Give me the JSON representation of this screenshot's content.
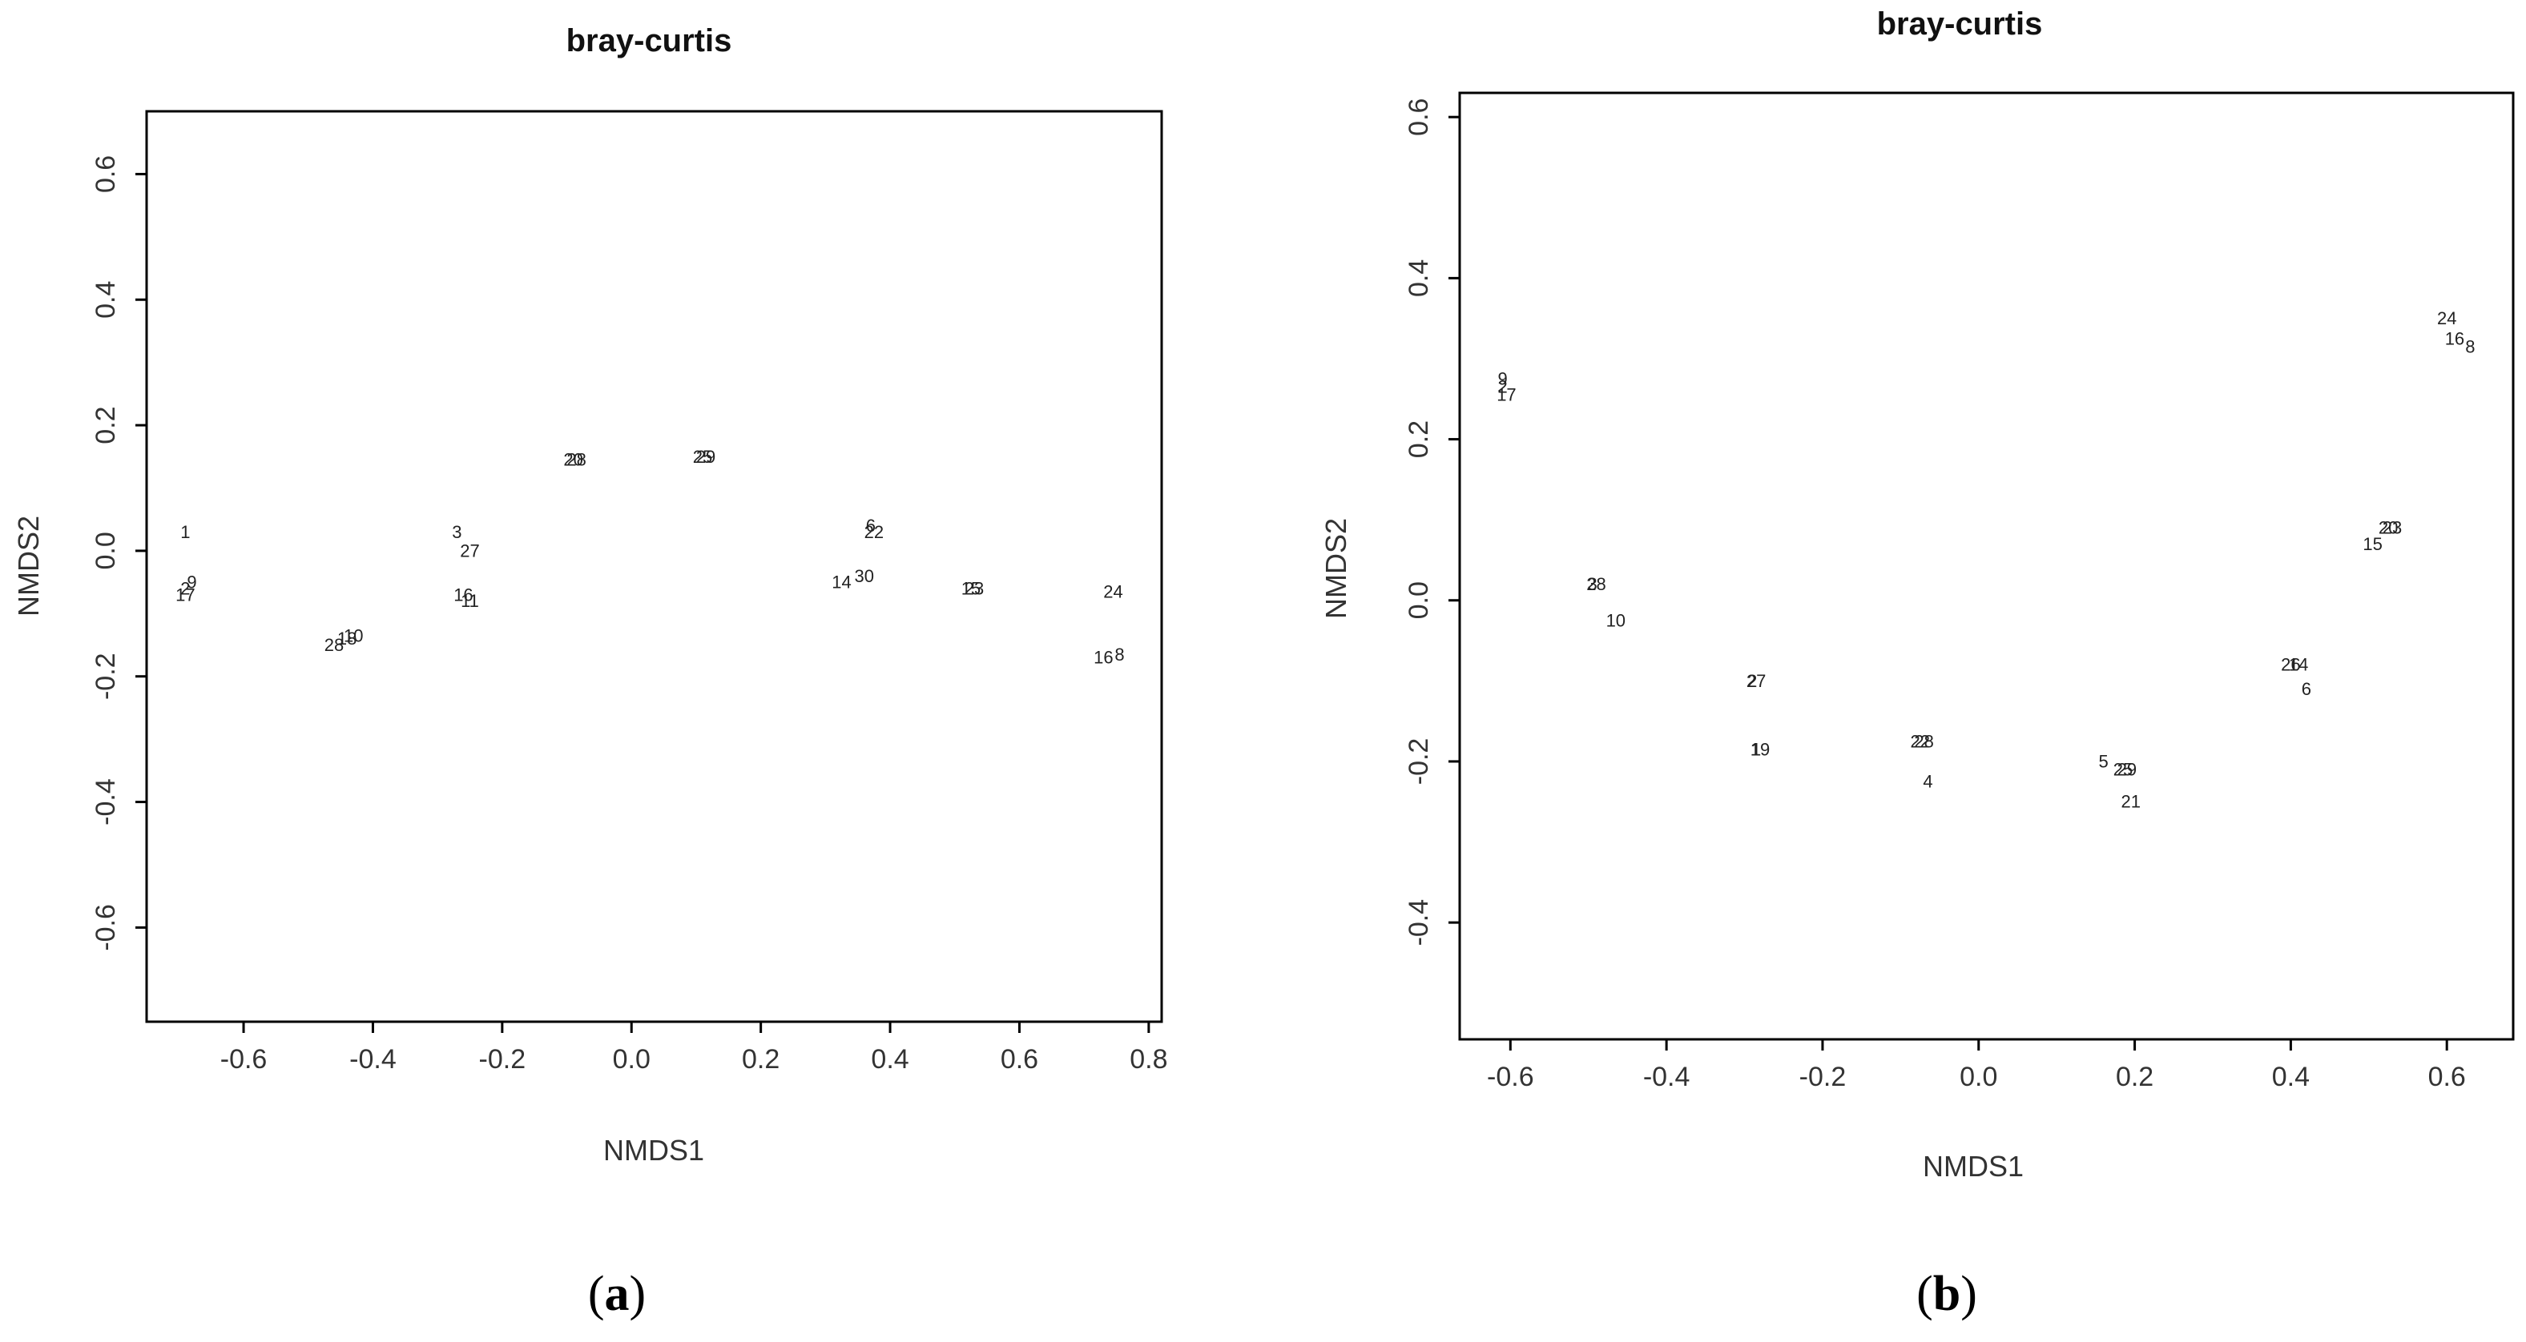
{
  "chart_data": [
    {
      "type": "scatter",
      "title": "bray-curtis",
      "xlabel": "NMDS1",
      "ylabel": "NMDS2",
      "caption": "a",
      "xlim": [
        -0.75,
        0.82
      ],
      "ylim": [
        -0.75,
        0.7
      ],
      "xticks": [
        -0.6,
        -0.4,
        -0.2,
        0.0,
        0.2,
        0.4,
        0.6,
        0.8
      ],
      "xticklabels": [
        "-0.6",
        "-0.4",
        "-0.2",
        "0.0",
        "0.2",
        "0.4",
        "0.6",
        "0.8"
      ],
      "yticks": [
        -0.6,
        -0.4,
        -0.2,
        0.0,
        0.2,
        0.4,
        0.6
      ],
      "yticklabels": [
        "-0.6",
        "-0.4",
        "-0.2",
        "0.0",
        "0.2",
        "0.4",
        "0.6"
      ],
      "points": [
        {
          "label": "1",
          "x": -0.69,
          "y": 0.03
        },
        {
          "label": "9",
          "x": -0.68,
          "y": -0.05
        },
        {
          "label": "2",
          "x": -0.69,
          "y": -0.06
        },
        {
          "label": "17",
          "x": -0.69,
          "y": -0.07
        },
        {
          "label": "28",
          "x": -0.46,
          "y": -0.15
        },
        {
          "label": "18",
          "x": -0.44,
          "y": -0.14
        },
        {
          "label": "10",
          "x": -0.43,
          "y": -0.135
        },
        {
          "label": "3",
          "x": -0.27,
          "y": 0.03
        },
        {
          "label": "27",
          "x": -0.25,
          "y": 0.0
        },
        {
          "label": "16",
          "x": -0.26,
          "y": -0.07
        },
        {
          "label": "11",
          "x": -0.25,
          "y": -0.08
        },
        {
          "label": "20",
          "x": -0.09,
          "y": 0.145
        },
        {
          "label": "28",
          "x": -0.085,
          "y": 0.145
        },
        {
          "label": "25",
          "x": 0.11,
          "y": 0.15
        },
        {
          "label": "29",
          "x": 0.115,
          "y": 0.15
        },
        {
          "label": "6",
          "x": 0.37,
          "y": 0.04
        },
        {
          "label": "22",
          "x": 0.375,
          "y": 0.03
        },
        {
          "label": "14",
          "x": 0.325,
          "y": -0.05
        },
        {
          "label": "30",
          "x": 0.36,
          "y": -0.04
        },
        {
          "label": "15",
          "x": 0.525,
          "y": -0.06
        },
        {
          "label": "23",
          "x": 0.53,
          "y": -0.06
        },
        {
          "label": "24",
          "x": 0.745,
          "y": -0.065
        },
        {
          "label": "16",
          "x": 0.73,
          "y": -0.17
        },
        {
          "label": "8",
          "x": 0.755,
          "y": -0.165
        }
      ]
    },
    {
      "type": "scatter",
      "title": "bray-curtis",
      "xlabel": "NMDS1",
      "ylabel": "NMDS2",
      "caption": "b",
      "xlim": [
        -0.665,
        0.685
      ],
      "ylim": [
        -0.545,
        0.63
      ],
      "xticks": [
        -0.6,
        -0.4,
        -0.2,
        0.0,
        0.2,
        0.4,
        0.6
      ],
      "xticklabels": [
        "-0.6",
        "-0.4",
        "-0.2",
        "0.0",
        "0.2",
        "0.4",
        "0.6"
      ],
      "yticks": [
        -0.4,
        -0.2,
        0.0,
        0.2,
        0.4,
        0.6
      ],
      "yticklabels": [
        "-0.4",
        "-0.2",
        "0.0",
        "0.2",
        "0.4",
        "0.6"
      ],
      "points": [
        {
          "label": "9",
          "x": -0.61,
          "y": 0.275
        },
        {
          "label": "2",
          "x": -0.61,
          "y": 0.265
        },
        {
          "label": "17",
          "x": -0.605,
          "y": 0.255
        },
        {
          "label": "3",
          "x": -0.495,
          "y": 0.02
        },
        {
          "label": "28",
          "x": -0.49,
          "y": 0.02
        },
        {
          "label": "10",
          "x": -0.465,
          "y": -0.025
        },
        {
          "label": "2",
          "x": -0.29,
          "y": -0.1
        },
        {
          "label": "27",
          "x": -0.285,
          "y": -0.1
        },
        {
          "label": "1",
          "x": -0.285,
          "y": -0.185
        },
        {
          "label": "19",
          "x": -0.28,
          "y": -0.185
        },
        {
          "label": "22",
          "x": -0.075,
          "y": -0.175
        },
        {
          "label": "28",
          "x": -0.07,
          "y": -0.175
        },
        {
          "label": "4",
          "x": -0.065,
          "y": -0.225
        },
        {
          "label": "5",
          "x": 0.16,
          "y": -0.2
        },
        {
          "label": "25",
          "x": 0.185,
          "y": -0.21
        },
        {
          "label": "29",
          "x": 0.19,
          "y": -0.21
        },
        {
          "label": "21",
          "x": 0.195,
          "y": -0.25
        },
        {
          "label": "26",
          "x": 0.4,
          "y": -0.08
        },
        {
          "label": "14",
          "x": 0.41,
          "y": -0.08
        },
        {
          "label": "6",
          "x": 0.42,
          "y": -0.11
        },
        {
          "label": "15",
          "x": 0.505,
          "y": 0.07
        },
        {
          "label": "20",
          "x": 0.525,
          "y": 0.09
        },
        {
          "label": "23",
          "x": 0.53,
          "y": 0.09
        },
        {
          "label": "24",
          "x": 0.6,
          "y": 0.35
        },
        {
          "label": "16",
          "x": 0.61,
          "y": 0.325
        },
        {
          "label": "8",
          "x": 0.63,
          "y": 0.315
        }
      ]
    }
  ]
}
